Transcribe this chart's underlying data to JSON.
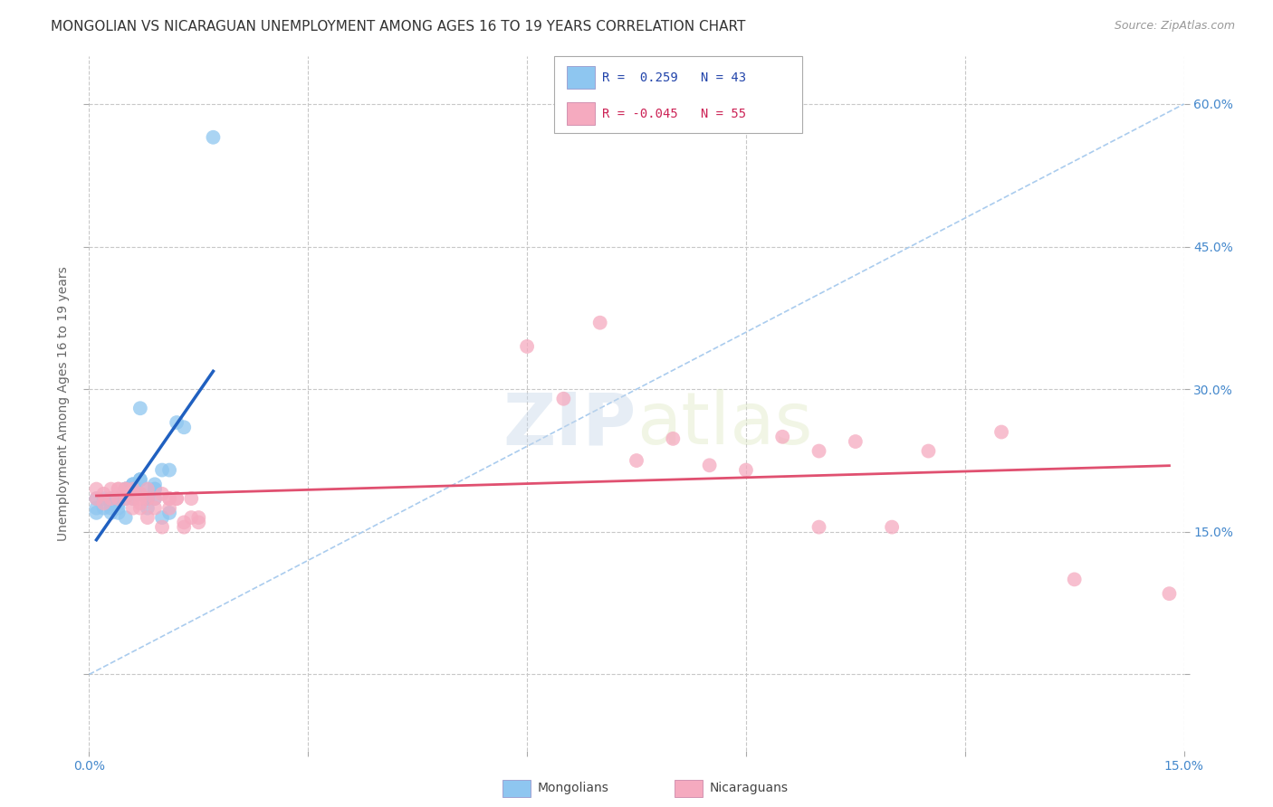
{
  "title": "MONGOLIAN VS NICARAGUAN UNEMPLOYMENT AMONG AGES 16 TO 19 YEARS CORRELATION CHART",
  "source": "Source: ZipAtlas.com",
  "ylabel": "Unemployment Among Ages 16 to 19 years",
  "xlim": [
    0.0,
    0.15
  ],
  "ylim": [
    -0.08,
    0.65
  ],
  "mongolian_R": 0.259,
  "mongolian_N": 43,
  "nicaraguan_R": -0.045,
  "nicaraguan_N": 55,
  "mongolian_color": "#8ec6f0",
  "nicaraguan_color": "#f5aabf",
  "mongolian_line_color": "#2060c0",
  "nicaraguan_line_color": "#e05070",
  "diagonal_color": "#aaccee",
  "background_color": "#ffffff",
  "grid_color": "#c8c8c8",
  "mongolian_x": [
    0.001,
    0.001,
    0.001,
    0.002,
    0.002,
    0.003,
    0.003,
    0.003,
    0.003,
    0.004,
    0.004,
    0.004,
    0.004,
    0.005,
    0.005,
    0.005,
    0.005,
    0.005,
    0.005,
    0.006,
    0.006,
    0.006,
    0.006,
    0.006,
    0.007,
    0.007,
    0.007,
    0.007,
    0.008,
    0.008,
    0.008,
    0.008,
    0.009,
    0.009,
    0.009,
    0.009,
    0.01,
    0.01,
    0.011,
    0.011,
    0.012,
    0.013,
    0.017
  ],
  "mongolian_y": [
    0.185,
    0.175,
    0.17,
    0.185,
    0.175,
    0.185,
    0.18,
    0.17,
    0.175,
    0.185,
    0.17,
    0.175,
    0.18,
    0.195,
    0.195,
    0.195,
    0.185,
    0.19,
    0.165,
    0.2,
    0.195,
    0.2,
    0.195,
    0.185,
    0.205,
    0.28,
    0.205,
    0.19,
    0.195,
    0.185,
    0.185,
    0.175,
    0.2,
    0.195,
    0.195,
    0.185,
    0.215,
    0.165,
    0.17,
    0.215,
    0.265,
    0.26,
    0.565
  ],
  "nicaraguan_x": [
    0.001,
    0.001,
    0.002,
    0.002,
    0.003,
    0.003,
    0.004,
    0.004,
    0.004,
    0.005,
    0.005,
    0.005,
    0.005,
    0.006,
    0.006,
    0.006,
    0.006,
    0.007,
    0.007,
    0.007,
    0.007,
    0.008,
    0.008,
    0.008,
    0.009,
    0.009,
    0.01,
    0.01,
    0.011,
    0.011,
    0.011,
    0.012,
    0.012,
    0.013,
    0.013,
    0.014,
    0.014,
    0.015,
    0.015,
    0.06,
    0.065,
    0.07,
    0.075,
    0.08,
    0.085,
    0.09,
    0.095,
    0.1,
    0.1,
    0.105,
    0.11,
    0.115,
    0.125,
    0.135,
    0.148
  ],
  "nicaraguan_y": [
    0.195,
    0.185,
    0.19,
    0.18,
    0.195,
    0.185,
    0.195,
    0.185,
    0.195,
    0.195,
    0.195,
    0.185,
    0.19,
    0.195,
    0.185,
    0.19,
    0.175,
    0.19,
    0.185,
    0.175,
    0.18,
    0.195,
    0.185,
    0.165,
    0.185,
    0.175,
    0.19,
    0.155,
    0.185,
    0.175,
    0.185,
    0.185,
    0.185,
    0.155,
    0.16,
    0.165,
    0.185,
    0.165,
    0.16,
    0.345,
    0.29,
    0.37,
    0.225,
    0.248,
    0.22,
    0.215,
    0.25,
    0.235,
    0.155,
    0.245,
    0.155,
    0.235,
    0.255,
    0.1,
    0.085
  ]
}
